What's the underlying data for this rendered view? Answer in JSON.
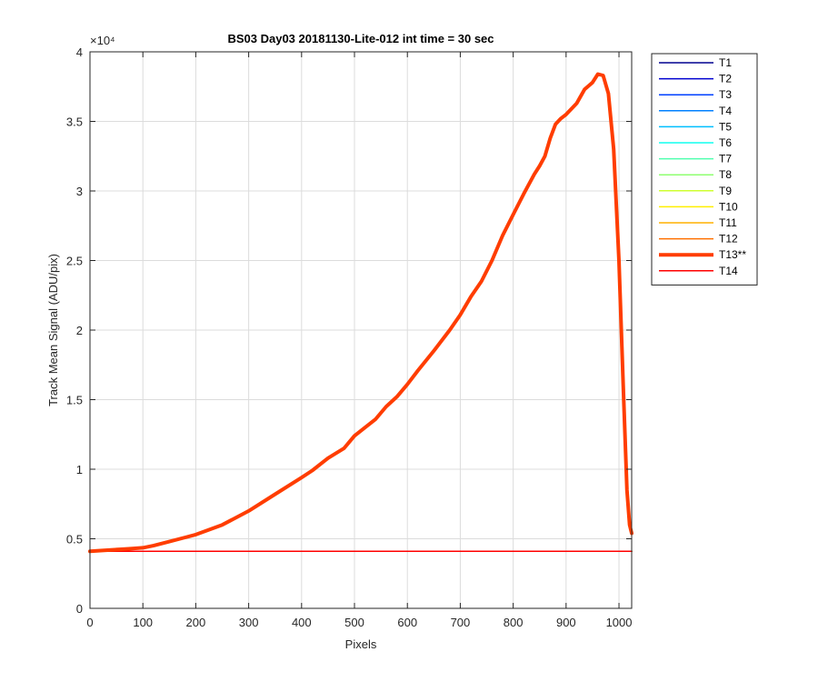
{
  "chart_data": {
    "type": "line",
    "title": "BS03 Day03 20181130-Lite-012 int time = 30 sec",
    "xlabel": "Pixels",
    "ylabel": "Track Mean Signal (ADU/pix)",
    "xlim": [
      0,
      1024
    ],
    "ylim": [
      0,
      40000
    ],
    "x_ticks": [
      0,
      100,
      200,
      300,
      400,
      500,
      600,
      700,
      800,
      900,
      1000
    ],
    "x_tick_labels": [
      "0",
      "100",
      "200",
      "300",
      "400",
      "500",
      "600",
      "700",
      "800",
      "900",
      "1000"
    ],
    "y_ticks": [
      0,
      5000,
      10000,
      15000,
      20000,
      25000,
      30000,
      35000,
      40000
    ],
    "y_tick_labels": [
      "0",
      "0.5",
      "1",
      "1.5",
      "2",
      "2.5",
      "3",
      "3.5",
      "4"
    ],
    "y_exponent_label": "×10⁴",
    "grid": true,
    "legend_position": "outside-top-right",
    "series": [
      {
        "name": "T1",
        "color": "#00008f",
        "width": 1.5,
        "x": [
          0,
          1024
        ],
        "y": [
          4100,
          4100
        ]
      },
      {
        "name": "T2",
        "color": "#0000d0",
        "width": 1.5,
        "x": [
          0,
          1024
        ],
        "y": [
          4100,
          4100
        ]
      },
      {
        "name": "T3",
        "color": "#0040ff",
        "width": 1.5,
        "x": [
          0,
          1024
        ],
        "y": [
          4100,
          4100
        ]
      },
      {
        "name": "T4",
        "color": "#0080ff",
        "width": 1.5,
        "x": [
          0,
          1024
        ],
        "y": [
          4100,
          4100
        ]
      },
      {
        "name": "T5",
        "color": "#00bfff",
        "width": 1.5,
        "x": [
          0,
          1024
        ],
        "y": [
          4100,
          4100
        ]
      },
      {
        "name": "T6",
        "color": "#10ffef",
        "width": 1.5,
        "x": [
          0,
          1024
        ],
        "y": [
          4100,
          4100
        ]
      },
      {
        "name": "T7",
        "color": "#50ffaf",
        "width": 1.5,
        "x": [
          0,
          1024
        ],
        "y": [
          4100,
          4100
        ]
      },
      {
        "name": "T8",
        "color": "#8fff70",
        "width": 1.5,
        "x": [
          0,
          1024
        ],
        "y": [
          4100,
          4100
        ]
      },
      {
        "name": "T9",
        "color": "#cfff30",
        "width": 1.5,
        "x": [
          0,
          1024
        ],
        "y": [
          4100,
          4100
        ]
      },
      {
        "name": "T10",
        "color": "#ffef00",
        "width": 1.5,
        "x": [
          0,
          1024
        ],
        "y": [
          4100,
          4100
        ]
      },
      {
        "name": "T11",
        "color": "#ffb000",
        "width": 1.5,
        "x": [
          0,
          1024
        ],
        "y": [
          4100,
          4100
        ]
      },
      {
        "name": "T12",
        "color": "#ff7000",
        "width": 1.5,
        "x": [
          0,
          1024
        ],
        "y": [
          4100,
          4100
        ]
      },
      {
        "name": "T14",
        "color": "#ff0000",
        "width": 1.5,
        "x": [
          0,
          1024
        ],
        "y": [
          4100,
          4100
        ]
      },
      {
        "name": "T13**",
        "color": "#ff3d00",
        "width": 4,
        "x": [
          0,
          20,
          40,
          60,
          80,
          100,
          120,
          150,
          180,
          200,
          250,
          300,
          350,
          400,
          420,
          450,
          480,
          500,
          520,
          540,
          560,
          580,
          600,
          620,
          650,
          680,
          700,
          720,
          740,
          760,
          780,
          800,
          820,
          840,
          850,
          860,
          870,
          880,
          890,
          900,
          920,
          935,
          950,
          960,
          970,
          980,
          990,
          1000,
          1008,
          1015,
          1020,
          1024
        ],
        "y": [
          4100,
          4150,
          4200,
          4250,
          4300,
          4350,
          4500,
          4800,
          5100,
          5300,
          6000,
          7000,
          8200,
          9400,
          9900,
          10800,
          11500,
          12400,
          13000,
          13600,
          14500,
          15200,
          16100,
          17100,
          18500,
          20000,
          21100,
          22400,
          23500,
          25000,
          26800,
          28300,
          29800,
          31200,
          31800,
          32500,
          33800,
          34800,
          35200,
          35500,
          36300,
          37300,
          37800,
          38400,
          38300,
          37000,
          33000,
          25000,
          16000,
          8500,
          6000,
          5400
        ]
      }
    ]
  }
}
